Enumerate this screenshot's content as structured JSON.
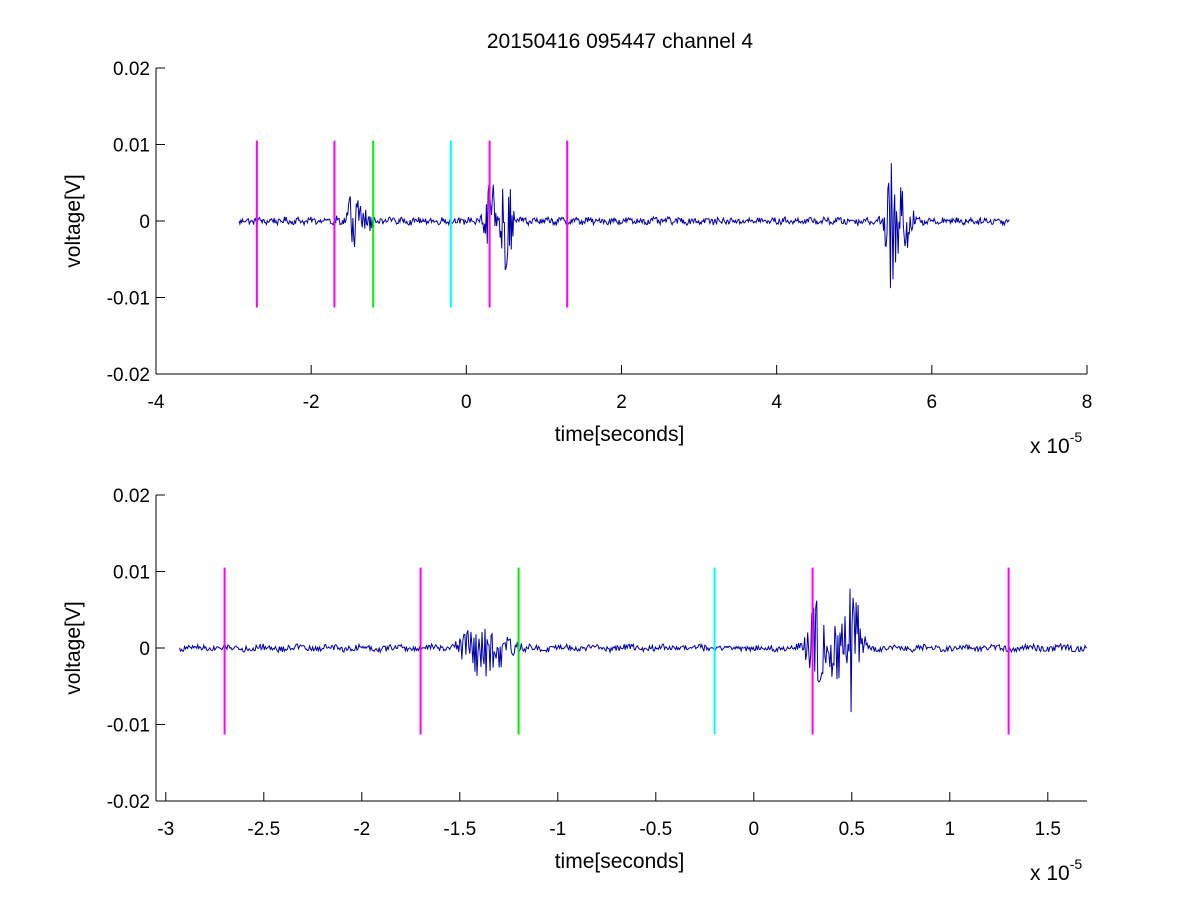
{
  "figure": {
    "title": "20150416 095447 channel 4",
    "colors": {
      "signal": "#0000aa",
      "magenta": "#ff00ff",
      "green": "#00ee00",
      "cyan": "#00ffff",
      "axes": "#000000"
    }
  },
  "chart_data": [
    {
      "type": "line",
      "title": "20150416 095447 channel 4",
      "xlabel": "time[seconds]",
      "ylabel": "voltage[V]",
      "x_multiplier_label": "x 10",
      "x_multiplier_exp": "-5",
      "xlim": [
        -4,
        8
      ],
      "ylim": [
        -0.02,
        0.02
      ],
      "xticks": [
        -4,
        -2,
        0,
        2,
        4,
        6,
        8
      ],
      "xtick_labels": [
        "-4",
        "-2",
        "0",
        "2",
        "4",
        "6",
        "8"
      ],
      "yticks": [
        0.02,
        0.01,
        0,
        -0.01,
        -0.02
      ],
      "ytick_labels": [
        "0.02",
        "0.01",
        "0",
        "-0.01",
        "-0.02"
      ],
      "signal": {
        "x_range": [
          -2.93,
          7.0
        ],
        "noise_amplitude": 0.0004,
        "bursts": [
          {
            "center": -1.42,
            "width": 0.2,
            "amp": 0.0038
          },
          {
            "center": 0.3,
            "width": 0.1,
            "amp": 0.006
          },
          {
            "center": 0.52,
            "width": 0.08,
            "amp": 0.0095
          },
          {
            "center": 5.47,
            "width": 0.08,
            "amp": 0.01
          },
          {
            "center": 5.62,
            "width": 0.15,
            "amp": 0.005
          }
        ]
      },
      "markers": [
        {
          "x": -2.7,
          "color": "magenta",
          "ymin": -0.0113,
          "ymax": 0.0105
        },
        {
          "x": -1.7,
          "color": "magenta",
          "ymin": -0.0113,
          "ymax": 0.0105
        },
        {
          "x": -1.2,
          "color": "green",
          "ymin": -0.0113,
          "ymax": 0.0105
        },
        {
          "x": -0.2,
          "color": "cyan",
          "ymin": -0.0113,
          "ymax": 0.0105
        },
        {
          "x": 0.3,
          "color": "magenta",
          "ymin": -0.0113,
          "ymax": 0.0105
        },
        {
          "x": 1.3,
          "color": "magenta",
          "ymin": -0.0113,
          "ymax": 0.0105
        }
      ]
    },
    {
      "type": "line",
      "title": "",
      "xlabel": "time[seconds]",
      "ylabel": "voltage[V]",
      "x_multiplier_label": "x 10",
      "x_multiplier_exp": "-5",
      "xlim": [
        -3.05,
        1.7
      ],
      "ylim": [
        -0.02,
        0.02
      ],
      "xticks": [
        -3,
        -2.5,
        -2,
        -1.5,
        -1,
        -0.5,
        0,
        0.5,
        1,
        1.5
      ],
      "xtick_labels": [
        "-3",
        "-2.5",
        "-2",
        "-1.5",
        "-1",
        "-0.5",
        "0",
        "0.5",
        "1",
        "1.5"
      ],
      "yticks": [
        0.02,
        0.01,
        0,
        -0.01,
        -0.02
      ],
      "ytick_labels": [
        "0.02",
        "0.01",
        "0",
        "-0.01",
        "-0.02"
      ],
      "signal": {
        "x_range": [
          -2.93,
          1.7
        ],
        "noise_amplitude": 0.0004,
        "bursts": [
          {
            "center": -1.4,
            "width": 0.12,
            "amp": 0.0038
          },
          {
            "center": -1.3,
            "width": 0.12,
            "amp": 0.0022
          },
          {
            "center": 0.32,
            "width": 0.06,
            "amp": 0.0075
          },
          {
            "center": 0.42,
            "width": 0.06,
            "amp": 0.005
          },
          {
            "center": 0.51,
            "width": 0.05,
            "amp": 0.0095
          }
        ]
      },
      "markers": [
        {
          "x": -2.7,
          "color": "magenta",
          "ymin": -0.0113,
          "ymax": 0.0105
        },
        {
          "x": -1.7,
          "color": "magenta",
          "ymin": -0.0113,
          "ymax": 0.0105
        },
        {
          "x": -1.2,
          "color": "green",
          "ymin": -0.0113,
          "ymax": 0.0105
        },
        {
          "x": -0.2,
          "color": "cyan",
          "ymin": -0.0113,
          "ymax": 0.0105
        },
        {
          "x": 0.3,
          "color": "magenta",
          "ymin": -0.0113,
          "ymax": 0.0105
        },
        {
          "x": 1.3,
          "color": "magenta",
          "ymin": -0.0113,
          "ymax": 0.0105
        }
      ]
    }
  ]
}
